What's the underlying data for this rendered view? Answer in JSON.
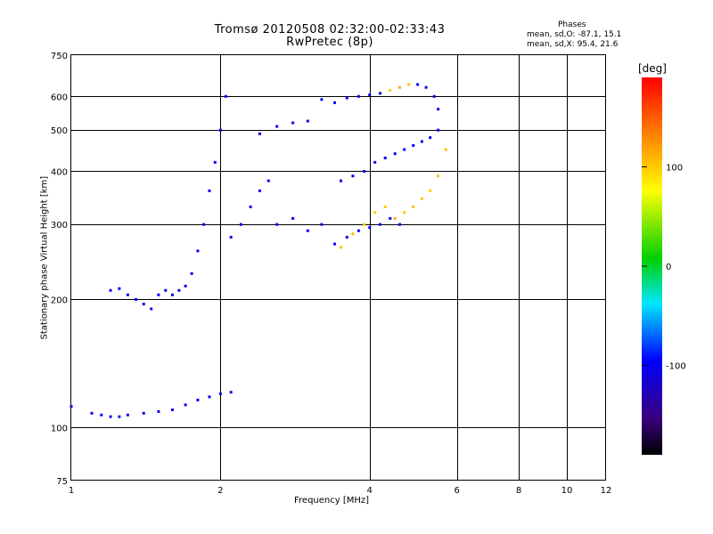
{
  "header": {
    "title_line1": "Tromsø 20120508 02:32:00-02:33:43",
    "title_line2": "RwPretec (8p)"
  },
  "phases": {
    "title": "Phases",
    "line1": "mean, sd,O: -87.1, 15.1",
    "line2": "mean, sd,X: 95.4, 21.6"
  },
  "colorbar": {
    "title": "[deg]",
    "ticks": [
      {
        "value": 100,
        "label": "100"
      },
      {
        "value": 0,
        "label": "0"
      },
      {
        "value": -100,
        "label": "-100"
      }
    ],
    "range": [
      -190,
      190
    ]
  },
  "chart_data": {
    "type": "scatter",
    "title": "Tromsø 20120508 02:32:00-02:33:43",
    "subtitle": "RwPretec (8p)",
    "xlabel": "Frequency [MHz]",
    "ylabel": "Stationary phase Virtual Height [km]",
    "x_scale": "log",
    "y_scale": "log",
    "xlim": [
      1,
      12
    ],
    "ylim": [
      75,
      750
    ],
    "xticks": [
      1,
      2,
      4,
      6,
      8,
      10,
      12
    ],
    "yticks": [
      75,
      100,
      200,
      300,
      400,
      500,
      600,
      750
    ],
    "grid": true,
    "series": [
      {
        "x": [
          1.0,
          1.1,
          1.15,
          1.2,
          1.25,
          1.3,
          1.4,
          1.5,
          1.6,
          1.7,
          1.8,
          1.9,
          2.0,
          2.1
        ],
        "y": [
          112,
          108,
          107,
          106,
          106,
          107,
          108,
          109,
          110,
          113,
          116,
          118,
          120,
          121
        ],
        "phase": [
          -100,
          -100,
          -95,
          -100,
          -90,
          -100,
          -105,
          -100,
          -95,
          -100,
          -100,
          -95,
          -100,
          -100
        ]
      },
      {
        "x": [
          1.2,
          1.25,
          1.3,
          1.35,
          1.4,
          1.45,
          1.5,
          1.55,
          1.6,
          1.65,
          1.7,
          1.75,
          1.8,
          1.85,
          1.9,
          1.95,
          2.0,
          2.05
        ],
        "y": [
          210,
          212,
          205,
          200,
          195,
          190,
          205,
          210,
          205,
          210,
          215,
          230,
          260,
          300,
          360,
          420,
          500,
          600
        ],
        "phase": [
          -100,
          -95,
          -100,
          -100,
          -105,
          -100,
          -95,
          -100,
          -100,
          -95,
          -100,
          -100,
          -100,
          -105,
          -100,
          -95,
          -100,
          -100
        ]
      },
      {
        "x": [
          2.1,
          2.2,
          2.3,
          2.4,
          2.5,
          2.6,
          2.8,
          3.0,
          3.2,
          3.4,
          3.6,
          3.8,
          4.0,
          4.2,
          4.4,
          4.6
        ],
        "y": [
          280,
          300,
          330,
          360,
          380,
          300,
          310,
          290,
          300,
          270,
          280,
          290,
          295,
          300,
          310,
          300
        ],
        "phase": [
          -100,
          -100,
          -95,
          -100,
          -105,
          -100,
          -100,
          -95,
          -110,
          -100,
          -100,
          -95,
          -100,
          -100,
          -90,
          -100
        ]
      },
      {
        "x": [
          2.4,
          2.6,
          2.8,
          3.0,
          3.2,
          3.4,
          3.6,
          3.8,
          4.0,
          4.2,
          4.4,
          4.6,
          4.8,
          5.0,
          5.2,
          5.4,
          5.5
        ],
        "y": [
          490,
          510,
          520,
          525,
          590,
          580,
          595,
          600,
          605,
          610,
          620,
          630,
          640,
          640,
          630,
          600,
          560
        ],
        "phase": [
          -100,
          -100,
          -95,
          -100,
          -100,
          -105,
          -100,
          -95,
          -100,
          -100,
          100,
          110,
          100,
          -95,
          -100,
          -100,
          -100
        ]
      },
      {
        "x": [
          3.5,
          3.7,
          3.9,
          4.1,
          4.3,
          4.5,
          4.7,
          4.9,
          5.1,
          5.3,
          5.5
        ],
        "y": [
          380,
          390,
          400,
          420,
          430,
          440,
          450,
          460,
          470,
          480,
          500
        ],
        "phase": [
          -100,
          -95,
          -100,
          -100,
          -95,
          -100,
          -100,
          -95,
          -100,
          -100,
          -100
        ]
      },
      {
        "x": [
          3.5,
          3.7,
          3.9,
          4.1,
          4.3,
          4.5,
          4.7,
          4.9,
          5.1,
          5.3,
          5.5,
          5.7
        ],
        "y": [
          265,
          285,
          300,
          320,
          330,
          310,
          320,
          330,
          345,
          360,
          390,
          450
        ],
        "phase": [
          100,
          105,
          100,
          95,
          100,
          110,
          100,
          105,
          100,
          95,
          100,
          105
        ]
      }
    ]
  }
}
